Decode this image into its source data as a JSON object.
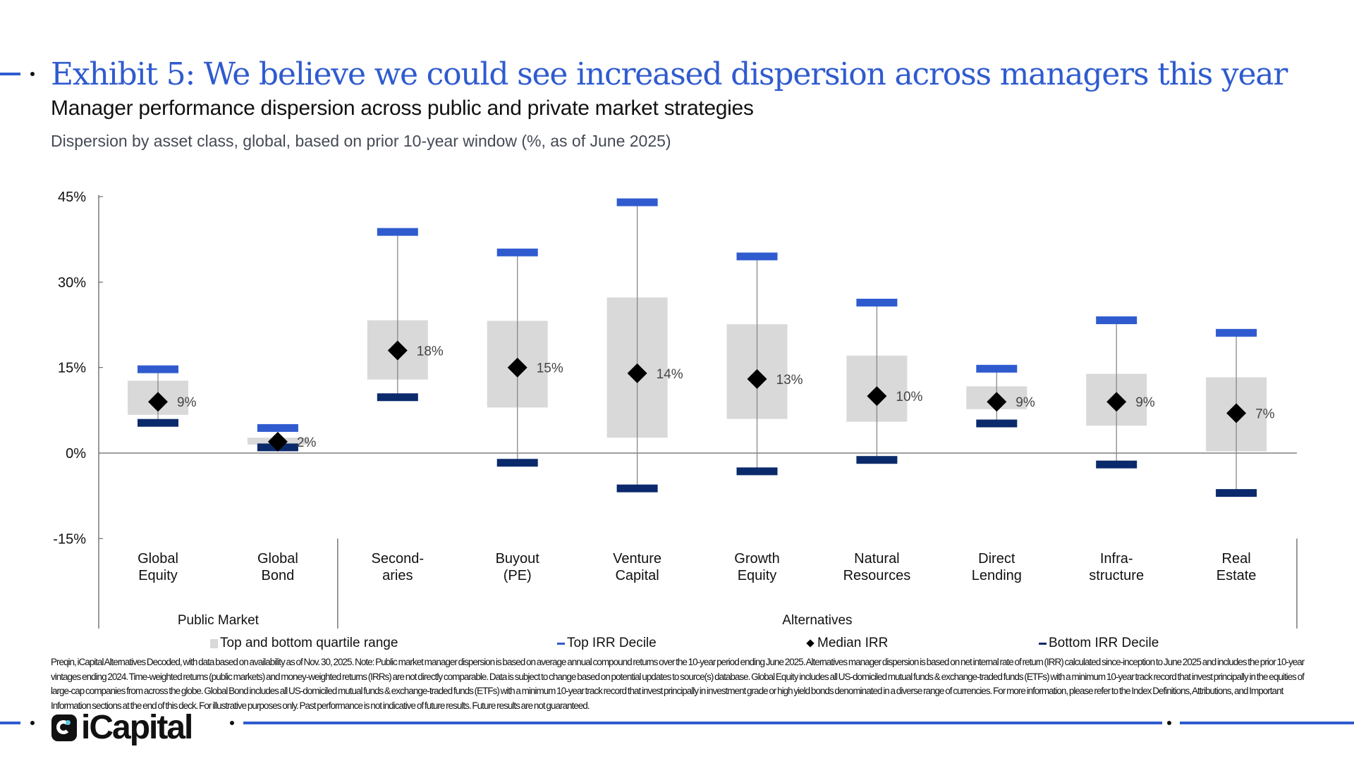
{
  "header": {
    "title": "Exhibit 5: We believe we could see increased dispersion across managers this year",
    "subtitle": "Manager performance dispersion across public and private market strategies",
    "description": "Dispersion by asset class, global, based on prior 10-year window (%, as of June 2025)"
  },
  "chart_data": {
    "type": "box-range",
    "ylim": [
      -15,
      45
    ],
    "yticks": [
      -15,
      0,
      15,
      30,
      45
    ],
    "ytick_labels": [
      "-15%",
      "0%",
      "15%",
      "30%",
      "45%"
    ],
    "grid": false,
    "categories": [
      [
        "Global",
        "Equity"
      ],
      [
        "Global",
        "Bond"
      ],
      [
        "Second-",
        "aries"
      ],
      [
        "Buyout",
        "(PE)"
      ],
      [
        "Venture",
        "Capital"
      ],
      [
        "Growth",
        "Equity"
      ],
      [
        "Natural",
        "Resources"
      ],
      [
        "Direct",
        "Lending"
      ],
      [
        "Infra-",
        "structure"
      ],
      [
        "Real",
        "Estate"
      ]
    ],
    "groups": [
      {
        "label": "Public Market",
        "count": 2
      },
      {
        "label": "Alternatives",
        "count": 8
      }
    ],
    "series": [
      {
        "name": "Top and bottom quartile range",
        "values": [
          [
            6.7,
            12.7
          ],
          [
            1.5,
            2.7
          ],
          [
            12.9,
            23.3
          ],
          [
            8.0,
            23.2
          ],
          [
            2.7,
            27.3
          ],
          [
            6.0,
            22.6
          ],
          [
            5.5,
            17.1
          ],
          [
            7.7,
            11.7
          ],
          [
            4.8,
            13.9
          ],
          [
            0.3,
            13.3
          ]
        ],
        "color": "#d9d9d9"
      },
      {
        "name": "Top IRR Decile",
        "values": [
          14.7,
          4.4,
          38.8,
          35.2,
          44.0,
          34.5,
          26.4,
          14.8,
          23.3,
          21.1
        ],
        "color": "#2f5bcf"
      },
      {
        "name": "Median IRR",
        "values": [
          9,
          2,
          18,
          15,
          14,
          13,
          10,
          9,
          9,
          7
        ],
        "labels": [
          "9%",
          "2%",
          "18%",
          "15%",
          "14%",
          "13%",
          "10%",
          "9%",
          "9%",
          "7%"
        ],
        "color": "#000000"
      },
      {
        "name": "Bottom IRR Decile",
        "values": [
          5.3,
          1.0,
          9.8,
          -1.7,
          -6.2,
          -3.2,
          -1.2,
          5.2,
          -2.0,
          -7.0
        ],
        "color": "#0b2a6b"
      }
    ],
    "legend_position": "bottom"
  },
  "footnote": "Preqin, iCapital Alternatives Decoded, with data based on availability as of Nov. 30, 2025. Note: Public market manager dispersion is based on average annual compound returns over the 10-year period ending June 2025. Alternatives manager dispersion is based on net internal rate of return (IRR) calculated since-inception to June 2025 and includes the prior 10-year vintages ending 2024. Time-weighted returns (public markets) and money-weighted returns (IRRs) are not directly comparable. Data is subject to change based on potential updates to source(s) database. Global Equity includes all US-domiciled mutual funds & exchange-traded funds (ETFs) with a minimum 10-year track record that invest principally in the equities of large-cap companies from across the globe. Global Bond includes all US-domiciled mutual funds & exchange-traded funds (ETFs) with a minimum 10-year track record that invest principally in investment grade or high yield bonds denominated in a diverse range of currencies. For more information, please refer to the Index Definitions, Attributions, and Important Information sections at the end of this deck. For illustrative purposes only. Past performance is not indicative of future results. Future results are not guaranteed.",
  "footer": {
    "logo_text": "iCapital"
  }
}
